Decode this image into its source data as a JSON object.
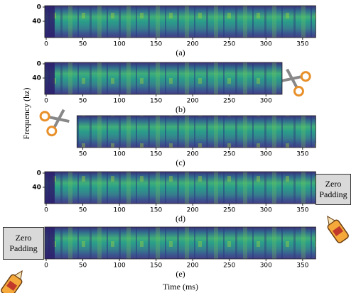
{
  "y_axis_label": "Frequency (hz)",
  "x_axis_label": "Time (ms)",
  "panels": [
    {
      "caption": "(a)",
      "xlim": [
        -2,
        368
      ],
      "xticks": [
        0,
        50,
        100,
        150,
        200,
        250,
        300,
        350
      ],
      "ylim": [
        -4,
        86
      ],
      "yticks": [
        0,
        40
      ]
    },
    {
      "caption": "(b)",
      "xlim": [
        -2,
        322
      ],
      "xticks": [
        0,
        50,
        100,
        150,
        200,
        250,
        300
      ],
      "ylim": [
        -4,
        86
      ],
      "yticks": [
        0,
        40
      ]
    },
    {
      "caption": "(c)",
      "xlim": [
        42,
        368
      ],
      "xticks": [
        50,
        100,
        150,
        200,
        250,
        300,
        350
      ],
      "ylim": [
        -4,
        86
      ],
      "yticks": []
    },
    {
      "caption": "(d)",
      "xlim": [
        -2,
        368
      ],
      "xticks": [
        0,
        50,
        100,
        150,
        200,
        250,
        300,
        350
      ],
      "ylim": [
        -4,
        86
      ],
      "yticks": [
        0,
        40
      ],
      "annotation": "Zero Padding"
    },
    {
      "caption": "(e)",
      "xlim": [
        -2,
        368
      ],
      "xticks": [
        0,
        50,
        100,
        150,
        200,
        250,
        300,
        350
      ],
      "ylim": [
        -4,
        86
      ],
      "yticks": [],
      "annotation": "Zero Padding"
    }
  ]
}
